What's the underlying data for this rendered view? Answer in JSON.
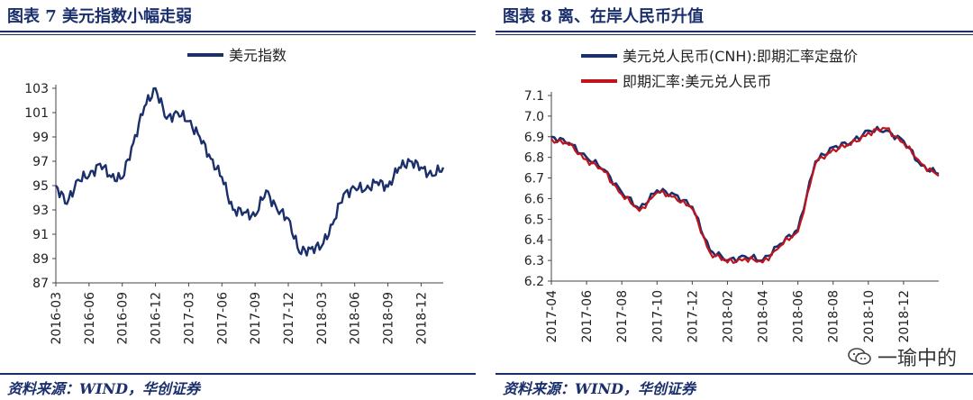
{
  "left": {
    "title": "图表 7   美元指数小幅走弱",
    "source": "资料来源：WIND，华创证券",
    "chart_data": {
      "type": "line",
      "legend": [
        "美元指数"
      ],
      "colors": {
        "series": "#1a2f6b",
        "axis": "#333333"
      },
      "ylim": [
        87,
        103
      ],
      "yticks": [
        "103",
        "101",
        "99",
        "97",
        "95",
        "93",
        "91",
        "89",
        "87"
      ],
      "xticks": [
        "2016-03",
        "2016-06",
        "2016-09",
        "2016-12",
        "2017-03",
        "2017-06",
        "2017-09",
        "2017-12",
        "2018-03",
        "2018-06",
        "2018-09",
        "2018-12"
      ],
      "series": [
        {
          "name": "美元指数",
          "x": [
            "2016-03",
            "2016-04",
            "2016-05",
            "2016-06",
            "2016-07",
            "2016-08",
            "2016-09",
            "2016-10",
            "2016-11",
            "2016-12",
            "2017-01",
            "2017-02",
            "2017-03",
            "2017-04",
            "2017-05",
            "2017-06",
            "2017-07",
            "2017-08",
            "2017-09",
            "2017-10",
            "2017-11",
            "2017-12",
            "2018-01",
            "2018-02",
            "2018-03",
            "2018-04",
            "2018-05",
            "2018-06",
            "2018-07",
            "2018-08",
            "2018-09",
            "2018-10",
            "2018-11",
            "2018-12",
            "2019-01",
            "2019-02"
          ],
          "values": [
            95.0,
            93.5,
            95.5,
            95.8,
            96.8,
            95.7,
            95.6,
            98.5,
            101.5,
            103.0,
            100.5,
            101.0,
            100.3,
            99.0,
            97.2,
            95.7,
            93.0,
            92.8,
            92.5,
            94.6,
            93.0,
            92.3,
            89.5,
            89.8,
            90.0,
            91.8,
            94.3,
            94.8,
            94.7,
            95.3,
            94.9,
            96.5,
            97.0,
            96.5,
            95.8,
            96.5
          ]
        }
      ]
    }
  },
  "right": {
    "title": "图表 8   离、在岸人民币升值",
    "source": "资料来源：WIND，华创证券",
    "watermark": "一瑜中的",
    "chart_data": {
      "type": "line",
      "legend": [
        "美元兑人民币(CNH):即期汇率定盘价",
        "即期汇率:美元兑人民币"
      ],
      "colors": {
        "cnh": "#1a2f6b",
        "spot": "#c0141c"
      },
      "ylim": [
        6.2,
        7.1
      ],
      "yticks": [
        "7.1",
        "7.0",
        "6.9",
        "6.8",
        "6.7",
        "6.6",
        "6.5",
        "6.4",
        "6.3",
        "6.2"
      ],
      "xticks": [
        "2017-04",
        "2017-06",
        "2017-08",
        "2017-10",
        "2017-12",
        "2018-02",
        "2018-04",
        "2018-06",
        "2018-08",
        "2018-10",
        "2018-12"
      ],
      "series": [
        {
          "name": "美元兑人民币(CNH):即期汇率定盘价",
          "x": [
            "2017-04",
            "2017-05",
            "2017-06",
            "2017-07",
            "2017-08",
            "2017-09",
            "2017-10",
            "2017-11",
            "2017-12",
            "2018-01",
            "2018-02",
            "2018-03",
            "2018-04",
            "2018-05",
            "2018-06",
            "2018-07",
            "2018-08",
            "2018-09",
            "2018-10",
            "2018-11",
            "2018-12",
            "2019-01",
            "2019-02"
          ],
          "values": [
            6.9,
            6.87,
            6.8,
            6.74,
            6.63,
            6.55,
            6.64,
            6.62,
            6.56,
            6.35,
            6.3,
            6.32,
            6.3,
            6.38,
            6.45,
            6.78,
            6.85,
            6.87,
            6.93,
            6.93,
            6.88,
            6.76,
            6.72
          ]
        },
        {
          "name": "即期汇率:美元兑人民币",
          "x": [
            "2017-04",
            "2017-05",
            "2017-06",
            "2017-07",
            "2017-08",
            "2017-09",
            "2017-10",
            "2017-11",
            "2017-12",
            "2018-01",
            "2018-02",
            "2018-03",
            "2018-04",
            "2018-05",
            "2018-06",
            "2018-07",
            "2018-08",
            "2018-09",
            "2018-10",
            "2018-11",
            "2018-12",
            "2019-01",
            "2019-02"
          ],
          "values": [
            6.89,
            6.86,
            6.79,
            6.73,
            6.62,
            6.54,
            6.63,
            6.61,
            6.55,
            6.34,
            6.29,
            6.31,
            6.29,
            6.37,
            6.44,
            6.77,
            6.84,
            6.86,
            6.92,
            6.94,
            6.87,
            6.77,
            6.71
          ]
        }
      ]
    }
  }
}
